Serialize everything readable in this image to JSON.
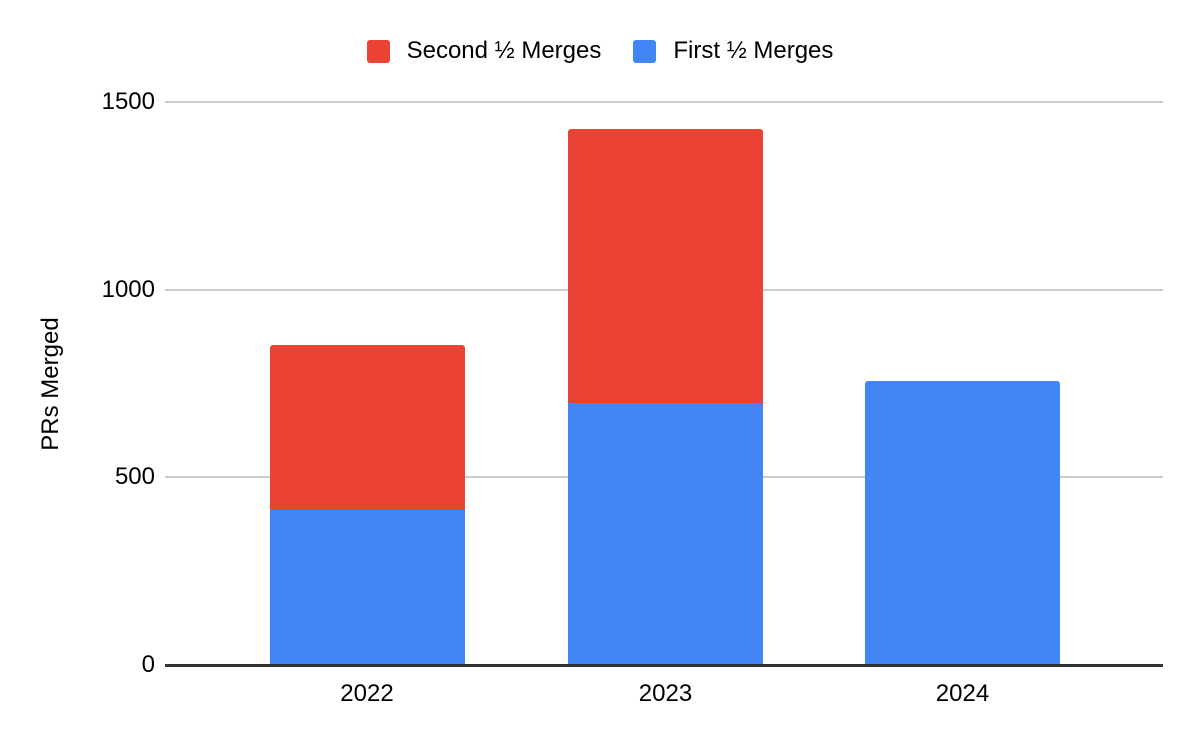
{
  "chart_data": {
    "type": "bar",
    "stacked": true,
    "title": "",
    "ylabel": "PRs Merged",
    "xlabel": "",
    "categories": [
      "2022",
      "2023",
      "2024"
    ],
    "series": [
      {
        "name": "Second ½ Merges",
        "color": "#EA4335",
        "values": [
          440,
          730,
          0
        ]
      },
      {
        "name": "First ½ Merges",
        "color": "#4285F4",
        "values": [
          410,
          695,
          755
        ]
      }
    ],
    "stack_order_bottom_to_top": [
      "First ½ Merges",
      "Second ½ Merges"
    ],
    "ylim": [
      0,
      1500
    ],
    "yticks": [
      0,
      500,
      1000,
      1500
    ],
    "grid": true,
    "legend_position": "top",
    "background": "#FFFFFF"
  },
  "colors": {
    "gridline": "#CCCCCC",
    "axis_line": "#333333",
    "text": "#000000"
  }
}
